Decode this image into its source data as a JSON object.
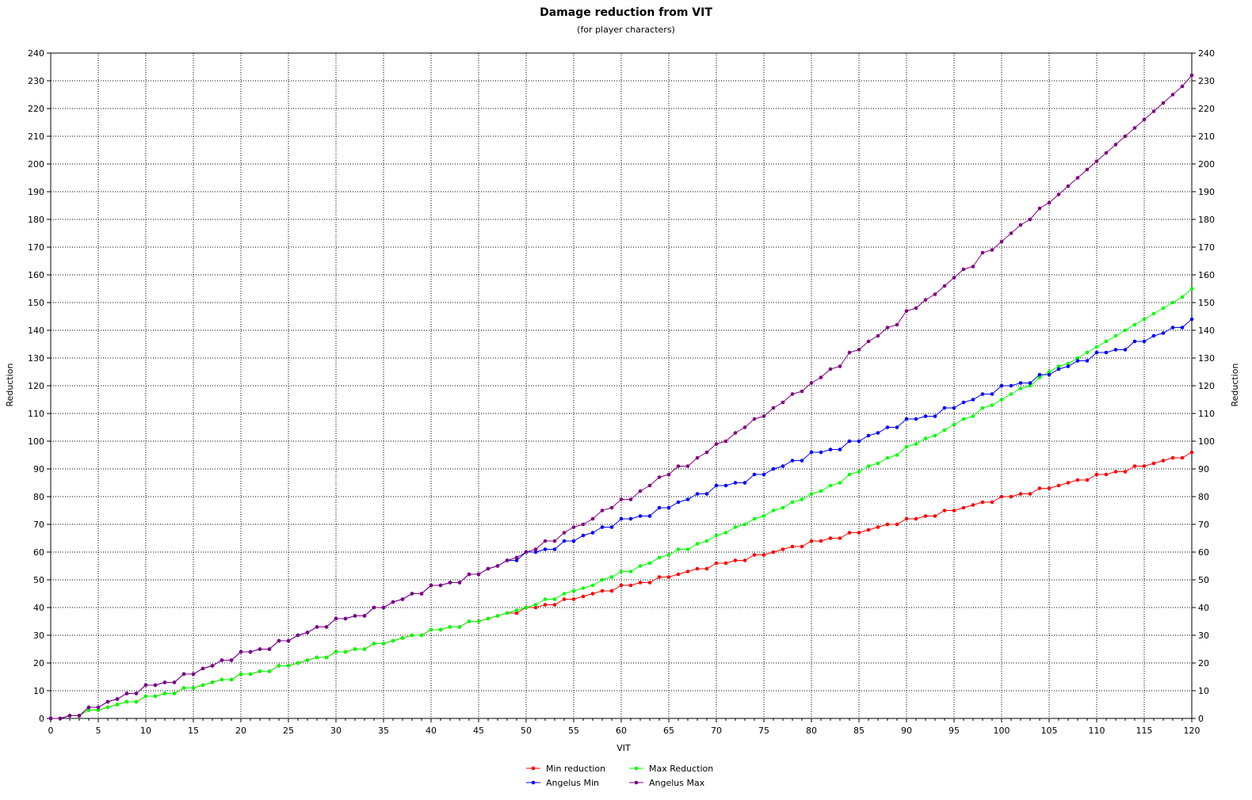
{
  "chart_data": {
    "type": "line",
    "title": "Damage reduction from VIT",
    "subtitle": "(for player characters)",
    "xlabel": "VIT",
    "ylabel": "Reduction",
    "y2label": "Reduction",
    "xlim": [
      0,
      120
    ],
    "ylim": [
      0,
      240
    ],
    "x_ticks": [
      0,
      5,
      10,
      15,
      20,
      25,
      30,
      35,
      40,
      45,
      50,
      55,
      60,
      65,
      70,
      75,
      80,
      85,
      90,
      95,
      100,
      105,
      110,
      115,
      120
    ],
    "y_ticks": [
      0,
      10,
      20,
      30,
      40,
      50,
      60,
      70,
      80,
      90,
      100,
      110,
      120,
      130,
      140,
      150,
      160,
      170,
      180,
      190,
      200,
      210,
      220,
      230,
      240
    ],
    "grid": true,
    "legend_position": "bottom",
    "x": {
      "start": 0,
      "end": 120,
      "step": 1
    },
    "series": [
      {
        "name": "Min reduction",
        "color": "#ff0000",
        "values": [
          0,
          0,
          1,
          1,
          3,
          3,
          4,
          5,
          6,
          6,
          8,
          8,
          9,
          9,
          11,
          11,
          12,
          13,
          14,
          14,
          16,
          16,
          17,
          17,
          19,
          19,
          20,
          21,
          22,
          22,
          24,
          24,
          25,
          25,
          27,
          27,
          28,
          29,
          30,
          30,
          32,
          32,
          33,
          33,
          35,
          35,
          36,
          37,
          38,
          38,
          40,
          40,
          41,
          41,
          43,
          43,
          44,
          45,
          46,
          46,
          48,
          48,
          49,
          49,
          51,
          51,
          52,
          53,
          54,
          54,
          56,
          56,
          57,
          57,
          59,
          59,
          60,
          61,
          62,
          62,
          64,
          64,
          65,
          65,
          67,
          67,
          68,
          69,
          70,
          70,
          72,
          72,
          73,
          73,
          75,
          75,
          76,
          77,
          78,
          78,
          80,
          80,
          81,
          81,
          83,
          83,
          84,
          85,
          86,
          86,
          88,
          88,
          89,
          89,
          91,
          91,
          92,
          93,
          94,
          94,
          96
        ]
      },
      {
        "name": "Max Reduction",
        "color": "#00ff00",
        "values": [
          0,
          0,
          1,
          1,
          3,
          3,
          4,
          5,
          6,
          6,
          8,
          8,
          9,
          9,
          11,
          11,
          12,
          13,
          14,
          14,
          16,
          16,
          17,
          17,
          19,
          19,
          20,
          21,
          22,
          22,
          24,
          24,
          25,
          25,
          27,
          27,
          28,
          29,
          30,
          30,
          32,
          32,
          33,
          33,
          35,
          35,
          36,
          37,
          38,
          39,
          40,
          41,
          43,
          43,
          45,
          46,
          47,
          48,
          50,
          51,
          53,
          53,
          55,
          56,
          58,
          59,
          61,
          61,
          63,
          64,
          66,
          67,
          69,
          70,
          72,
          73,
          75,
          76,
          78,
          79,
          81,
          82,
          84,
          85,
          88,
          89,
          91,
          92,
          94,
          95,
          98,
          99,
          101,
          102,
          104,
          106,
          108,
          109,
          112,
          113,
          115,
          117,
          119,
          120,
          123,
          125,
          127,
          128,
          130,
          132,
          134,
          136,
          138,
          140,
          142,
          144,
          146,
          148,
          150,
          152,
          155
        ]
      },
      {
        "name": "Angelus Min",
        "color": "#0000ff",
        "values": [
          0,
          0,
          1,
          1,
          4,
          4,
          6,
          7,
          9,
          9,
          12,
          12,
          13,
          13,
          16,
          16,
          18,
          19,
          21,
          21,
          24,
          24,
          25,
          25,
          28,
          28,
          30,
          31,
          33,
          33,
          36,
          36,
          37,
          37,
          40,
          40,
          42,
          43,
          45,
          45,
          48,
          48,
          49,
          49,
          52,
          52,
          54,
          55,
          57,
          57,
          60,
          60,
          61,
          61,
          64,
          64,
          66,
          67,
          69,
          69,
          72,
          72,
          73,
          73,
          76,
          76,
          78,
          79,
          81,
          81,
          84,
          84,
          85,
          85,
          88,
          88,
          90,
          91,
          93,
          93,
          96,
          96,
          97,
          97,
          100,
          100,
          102,
          103,
          105,
          105,
          108,
          108,
          109,
          109,
          112,
          112,
          114,
          115,
          117,
          117,
          120,
          120,
          121,
          121,
          124,
          124,
          126,
          127,
          129,
          129,
          132,
          132,
          133,
          133,
          136,
          136,
          138,
          139,
          141,
          141,
          144
        ]
      },
      {
        "name": "Angelus Max",
        "color": "#800080",
        "values": [
          0,
          0,
          1,
          1,
          4,
          4,
          6,
          7,
          9,
          9,
          12,
          12,
          13,
          13,
          16,
          16,
          18,
          19,
          21,
          21,
          24,
          24,
          25,
          25,
          28,
          28,
          30,
          31,
          33,
          33,
          36,
          36,
          37,
          37,
          40,
          40,
          42,
          43,
          45,
          45,
          48,
          48,
          49,
          49,
          52,
          52,
          54,
          55,
          57,
          58,
          60,
          61,
          64,
          64,
          67,
          69,
          70,
          72,
          75,
          76,
          79,
          79,
          82,
          84,
          87,
          88,
          91,
          91,
          94,
          96,
          99,
          100,
          103,
          105,
          108,
          109,
          112,
          114,
          117,
          118,
          121,
          123,
          126,
          127,
          132,
          133,
          136,
          138,
          141,
          142,
          147,
          148,
          151,
          153,
          156,
          159,
          162,
          163,
          168,
          169,
          172,
          175,
          178,
          180,
          184,
          186,
          189,
          192,
          195,
          198,
          201,
          204,
          207,
          210,
          213,
          216,
          219,
          222,
          225,
          228,
          232
        ]
      }
    ]
  }
}
